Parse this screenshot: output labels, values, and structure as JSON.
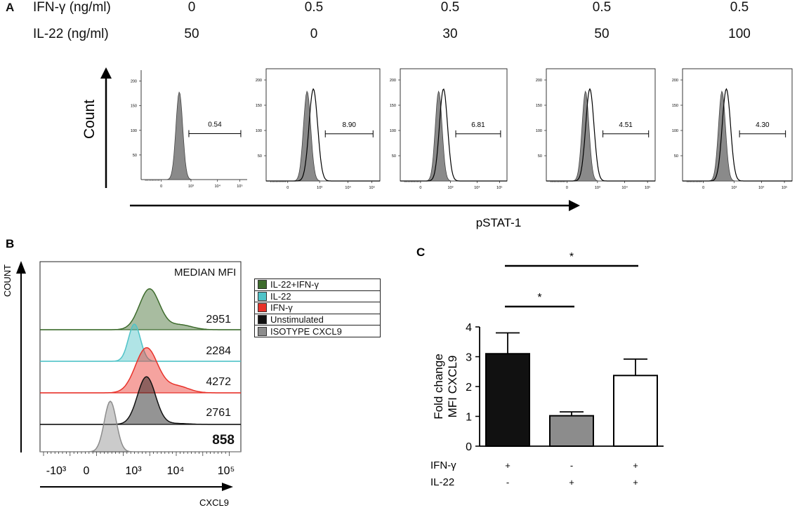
{
  "panel_a": {
    "label": "A",
    "row1_label": "IFN-γ (ng/ml)",
    "row2_label": "IL-22 (ng/ml)",
    "conditions": [
      {
        "ifn": "0",
        "il22": "50",
        "gate_pct": "0.54"
      },
      {
        "ifn": "0.5",
        "il22": "0",
        "gate_pct": "8.90"
      },
      {
        "ifn": "0.5",
        "il22": "30",
        "gate_pct": "6.81"
      },
      {
        "ifn": "0.5",
        "il22": "50",
        "gate_pct": "4.51"
      },
      {
        "ifn": "0.5",
        "il22": "100",
        "gate_pct": "4.30"
      }
    ],
    "y_axis_label": "Count",
    "x_axis_label": "pSTAT-1",
    "y_ticks": [
      "50",
      "100",
      "150",
      "200"
    ],
    "x_ticks": [
      "0",
      "10³",
      "10⁴",
      "10⁵"
    ]
  },
  "panel_b": {
    "label": "B",
    "y_axis_label": "COUNT",
    "x_axis_label": "CXCL9",
    "header": "MEDIAN MFI",
    "x_ticks": [
      "-10³",
      "0",
      "10³",
      "10⁴",
      "10⁵"
    ],
    "legend": [
      {
        "label": "IL-22+IFN-γ",
        "color": "#3d6b2c"
      },
      {
        "label": "IL-22",
        "color": "#4fc3c8"
      },
      {
        "label": "IFN-γ",
        "color": "#e8322a"
      },
      {
        "label": "Unstimulated",
        "color": "#111111"
      },
      {
        "label": "ISOTYPE CXCL9",
        "color": "#8c8c8c"
      }
    ],
    "mfi_values": [
      "2951",
      "2284",
      "4272",
      "2761",
      "858"
    ]
  },
  "chart_data": {
    "type": "bar",
    "title": "",
    "panel_label": "C",
    "ylabel": "Fold change MFI CXCL9",
    "ylim": [
      0,
      4
    ],
    "yticks": [
      "0",
      "1",
      "2",
      "3",
      "4"
    ],
    "categories": [
      "IFN-γ + / IL-22 -",
      "IFN-γ - / IL-22 +",
      "IFN-γ + / IL-22 +"
    ],
    "values": [
      3.1,
      1.02,
      2.37
    ],
    "errors": [
      0.7,
      0.13,
      0.55
    ],
    "bar_colors": [
      "#111111",
      "#8c8c8c",
      "#ffffff"
    ],
    "factor_rows": [
      {
        "label": "IFN-γ",
        "signs": [
          "+",
          "-",
          "+"
        ]
      },
      {
        "label": "IL-22",
        "signs": [
          "-",
          "+",
          "+"
        ]
      }
    ],
    "significance": [
      {
        "pair": [
          1,
          2
        ],
        "label": "*"
      },
      {
        "pair": [
          1,
          3
        ],
        "label": "*"
      }
    ]
  }
}
